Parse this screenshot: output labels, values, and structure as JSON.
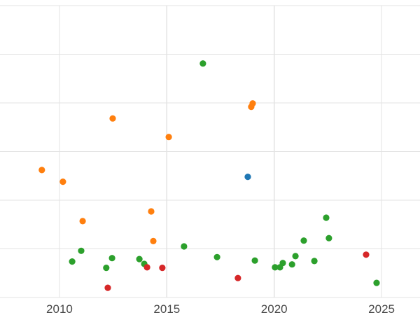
{
  "chart_data": {
    "type": "scatter",
    "title": "",
    "xlabel": "",
    "ylabel": "",
    "grid": true,
    "legend": "none",
    "x_ticks": [
      2010,
      2015,
      2020,
      2025
    ],
    "xlim": [
      2007.23,
      2026.79
    ],
    "ylim": [
      0,
      6
    ],
    "y_gridline_values": [
      0,
      1,
      2,
      3,
      4,
      5,
      6
    ],
    "marker_color_note": "matplotlib tab10 palette",
    "series": [
      {
        "name": "orange",
        "color": "#ff7f0e",
        "points": [
          [
            2009.18,
            2.62
          ],
          [
            2010.16,
            2.38
          ],
          [
            2011.08,
            1.57
          ],
          [
            2012.48,
            3.68
          ],
          [
            2014.27,
            1.77
          ],
          [
            2014.37,
            1.16
          ],
          [
            2015.09,
            3.3
          ],
          [
            2018.93,
            3.92
          ],
          [
            2019.0,
            3.99
          ]
        ]
      },
      {
        "name": "green",
        "color": "#2ca02c",
        "points": [
          [
            2010.59,
            0.74
          ],
          [
            2011.01,
            0.96
          ],
          [
            2012.18,
            0.61
          ],
          [
            2012.45,
            0.81
          ],
          [
            2013.72,
            0.79
          ],
          [
            2013.95,
            0.69
          ],
          [
            2015.8,
            1.05
          ],
          [
            2016.68,
            4.81
          ],
          [
            2017.34,
            0.83
          ],
          [
            2019.1,
            0.76
          ],
          [
            2020.04,
            0.62
          ],
          [
            2020.27,
            0.62
          ],
          [
            2020.4,
            0.71
          ],
          [
            2020.83,
            0.68
          ],
          [
            2020.99,
            0.85
          ],
          [
            2021.38,
            1.17
          ],
          [
            2021.87,
            0.75
          ],
          [
            2022.42,
            1.64
          ],
          [
            2022.55,
            1.22
          ],
          [
            2024.77,
            0.3
          ]
        ]
      },
      {
        "name": "red",
        "color": "#d62728",
        "points": [
          [
            2012.25,
            0.2
          ],
          [
            2014.08,
            0.62
          ],
          [
            2014.79,
            0.61
          ],
          [
            2018.31,
            0.4
          ],
          [
            2024.28,
            0.88
          ]
        ]
      },
      {
        "name": "blue",
        "color": "#1f77b4",
        "points": [
          [
            2018.77,
            2.48
          ]
        ]
      }
    ]
  }
}
